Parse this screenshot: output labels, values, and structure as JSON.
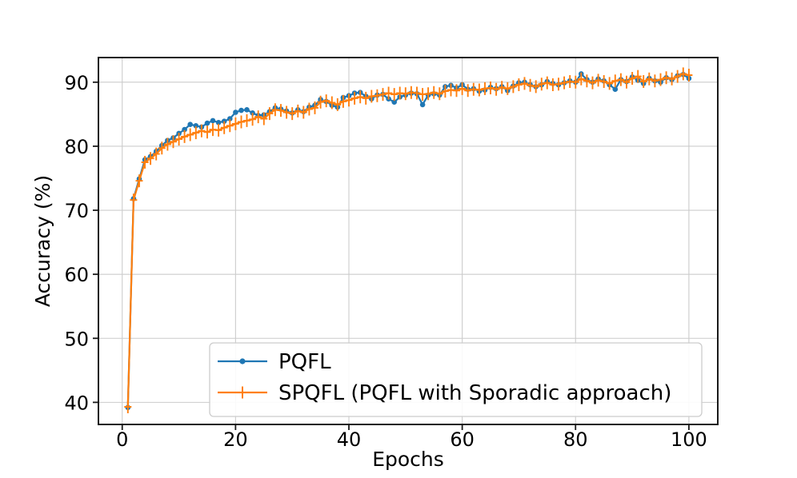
{
  "figure": {
    "background": "#ffffff"
  },
  "chart_data": {
    "type": "line",
    "title": "",
    "xlabel": "Epochs",
    "ylabel": "Accuracy (%)",
    "x_ticks": [
      0,
      20,
      40,
      60,
      80,
      100
    ],
    "y_ticks": [
      40,
      50,
      60,
      70,
      80,
      90
    ],
    "xlim": [
      -4.2,
      105.1
    ],
    "ylim": [
      36.55,
      93.85
    ],
    "grid": true,
    "legend_position": "lower center",
    "colors": {
      "grid": "#cccccc",
      "spine": "#1a1a1a",
      "text": "#000000",
      "legend_border": "#cccccc",
      "legend_fill": "#ffffff"
    },
    "x": [
      1,
      2,
      3,
      4,
      5,
      6,
      7,
      8,
      9,
      10,
      11,
      12,
      13,
      14,
      15,
      16,
      17,
      18,
      19,
      20,
      21,
      22,
      23,
      24,
      25,
      26,
      27,
      28,
      29,
      30,
      31,
      32,
      33,
      34,
      35,
      36,
      37,
      38,
      39,
      40,
      41,
      42,
      43,
      44,
      45,
      46,
      47,
      48,
      49,
      50,
      51,
      52,
      53,
      54,
      55,
      56,
      57,
      58,
      59,
      60,
      61,
      62,
      63,
      64,
      65,
      66,
      67,
      68,
      69,
      70,
      71,
      72,
      73,
      74,
      75,
      76,
      77,
      78,
      79,
      80,
      81,
      82,
      83,
      84,
      85,
      86,
      87,
      88,
      89,
      90,
      91,
      92,
      93,
      94,
      95,
      96,
      97,
      98,
      99,
      100
    ],
    "series": [
      {
        "name": "PQFL",
        "color": "#1f77b4",
        "marker": "circle",
        "values": [
          39.2,
          71.8,
          74.9,
          77.9,
          78.4,
          79.2,
          80.1,
          80.9,
          81.3,
          82.0,
          82.6,
          83.4,
          83.2,
          83.0,
          83.6,
          84.0,
          83.7,
          83.9,
          84.3,
          85.3,
          85.6,
          85.7,
          85.2,
          84.8,
          84.9,
          85.4,
          86.0,
          85.8,
          85.5,
          85.2,
          85.7,
          85.4,
          86.1,
          86.4,
          87.3,
          87.0,
          86.4,
          86.1,
          87.6,
          87.9,
          88.3,
          88.4,
          87.8,
          87.4,
          88.0,
          88.1,
          87.4,
          86.9,
          87.7,
          88.0,
          88.3,
          88.2,
          86.5,
          88.0,
          88.2,
          88.0,
          89.3,
          89.5,
          89.1,
          89.6,
          88.9,
          89.0,
          88.6,
          88.8,
          89.2,
          89.0,
          89.3,
          88.7,
          89.4,
          89.9,
          90.0,
          89.6,
          89.3,
          89.6,
          90.1,
          89.8,
          89.6,
          89.9,
          90.2,
          90.0,
          91.3,
          90.4,
          90.0,
          90.5,
          90.2,
          89.6,
          88.9,
          90.4,
          90.1,
          90.8,
          90.3,
          89.8,
          90.6,
          90.2,
          90.0,
          90.7,
          90.4,
          91.0,
          91.2,
          90.6
        ]
      },
      {
        "name": "SPQFL (PQFL with Sporadic approach)",
        "color": "#ff7f0e",
        "marker": "plus",
        "yerr": 0.35,
        "values": [
          39.3,
          71.6,
          74.6,
          77.5,
          78.1,
          78.8,
          79.7,
          80.3,
          80.7,
          81.1,
          81.5,
          81.8,
          82.1,
          82.4,
          82.2,
          82.6,
          82.5,
          82.9,
          83.2,
          83.5,
          83.8,
          84.0,
          84.2,
          84.6,
          84.3,
          85.1,
          85.7,
          85.6,
          85.3,
          85.1,
          85.5,
          85.3,
          85.8,
          86.0,
          86.9,
          87.1,
          86.8,
          86.5,
          87.0,
          87.2,
          87.5,
          87.7,
          87.5,
          87.8,
          87.9,
          88.1,
          88.3,
          88.1,
          88.3,
          88.2,
          88.4,
          88.3,
          88.1,
          88.2,
          88.4,
          88.2,
          88.6,
          88.8,
          88.7,
          89.0,
          88.7,
          88.9,
          88.8,
          89.0,
          89.1,
          88.9,
          89.2,
          89.0,
          89.3,
          89.6,
          89.8,
          89.5,
          89.3,
          89.7,
          89.9,
          89.6,
          89.7,
          89.9,
          90.1,
          90.0,
          90.5,
          90.2,
          89.9,
          90.3,
          90.1,
          89.8,
          90.2,
          90.4,
          90.0,
          90.6,
          90.9,
          90.1,
          90.5,
          90.2,
          90.4,
          90.7,
          90.5,
          90.9,
          91.3,
          91.1
        ]
      }
    ]
  }
}
